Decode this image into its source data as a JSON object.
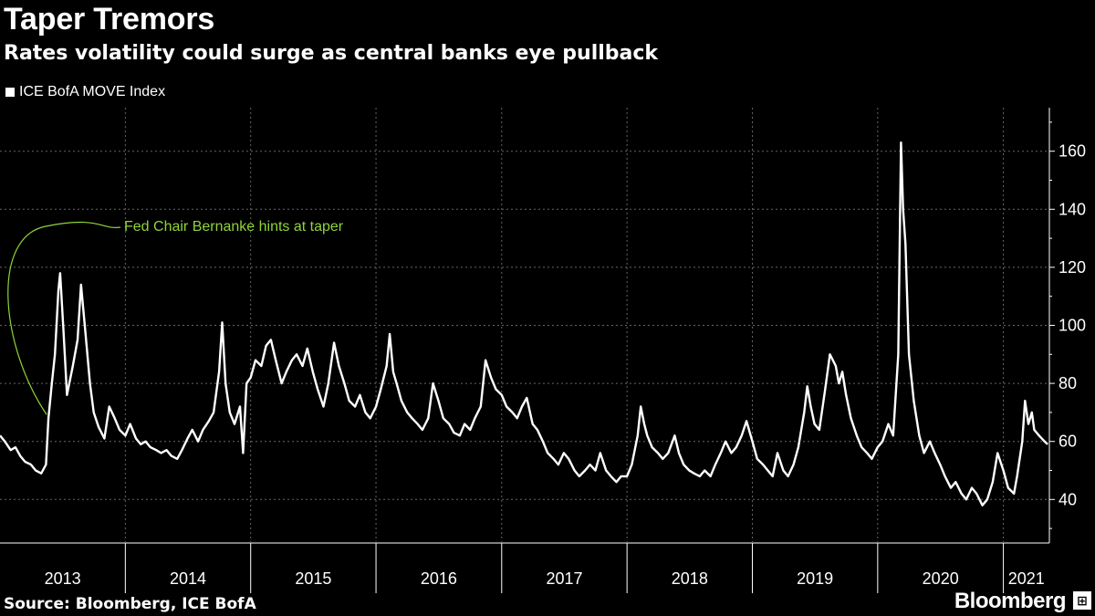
{
  "header": {
    "title": "Taper Tremors",
    "subtitle": "Rates volatility could surge as central banks eye pullback"
  },
  "legend": {
    "label": "ICE BofA MOVE Index"
  },
  "footer": {
    "source": "Source: Bloomberg, ICE BofA",
    "brand": "Bloomberg"
  },
  "colors": {
    "background": "#000000",
    "line": "#ffffff",
    "annotation": "#8fd43a",
    "grid": "#666666"
  },
  "chart_data": {
    "type": "line",
    "title": "Taper Tremors",
    "subtitle": "Rates volatility could surge as central banks eye pullback",
    "xlabel": "",
    "ylabel": "",
    "xlim": [
      "2013-01-01",
      "2021-05-15"
    ],
    "ylim": [
      25,
      175
    ],
    "y_ticks": [
      40,
      60,
      80,
      100,
      120,
      140,
      160
    ],
    "x_tick_labels": [
      "2013",
      "2014",
      "2015",
      "2016",
      "2017",
      "2018",
      "2019",
      "2020",
      "2021"
    ],
    "grid": true,
    "y_axis_side": "right",
    "annotation": {
      "text": "Fed Chair Bernanke hints at taper",
      "date": "2013-05-22"
    },
    "series": [
      {
        "name": "ICE BofA MOVE Index",
        "points": [
          [
            "2013-01-01",
            62
          ],
          [
            "2013-01-15",
            60
          ],
          [
            "2013-02-01",
            57
          ],
          [
            "2013-02-15",
            58
          ],
          [
            "2013-03-01",
            55
          ],
          [
            "2013-03-15",
            53
          ],
          [
            "2013-04-01",
            52
          ],
          [
            "2013-04-15",
            50
          ],
          [
            "2013-05-01",
            49
          ],
          [
            "2013-05-15",
            52
          ],
          [
            "2013-05-22",
            68
          ],
          [
            "2013-06-01",
            80
          ],
          [
            "2013-06-10",
            90
          ],
          [
            "2013-06-20",
            112
          ],
          [
            "2013-06-25",
            118
          ],
          [
            "2013-07-05",
            98
          ],
          [
            "2013-07-15",
            76
          ],
          [
            "2013-08-01",
            86
          ],
          [
            "2013-08-15",
            95
          ],
          [
            "2013-08-25",
            114
          ],
          [
            "2013-09-05",
            100
          ],
          [
            "2013-09-20",
            80
          ],
          [
            "2013-10-01",
            70
          ],
          [
            "2013-10-15",
            65
          ],
          [
            "2013-11-01",
            61
          ],
          [
            "2013-11-15",
            72
          ],
          [
            "2013-12-01",
            68
          ],
          [
            "2013-12-15",
            64
          ],
          [
            "2014-01-01",
            62
          ],
          [
            "2014-01-15",
            66
          ],
          [
            "2014-02-01",
            61
          ],
          [
            "2014-02-15",
            59
          ],
          [
            "2014-03-01",
            60
          ],
          [
            "2014-03-15",
            58
          ],
          [
            "2014-04-01",
            57
          ],
          [
            "2014-04-15",
            56
          ],
          [
            "2014-05-01",
            57
          ],
          [
            "2014-05-15",
            55
          ],
          [
            "2014-06-01",
            54
          ],
          [
            "2014-06-15",
            57
          ],
          [
            "2014-07-01",
            61
          ],
          [
            "2014-07-15",
            64
          ],
          [
            "2014-08-01",
            60
          ],
          [
            "2014-08-15",
            64
          ],
          [
            "2014-09-01",
            67
          ],
          [
            "2014-09-15",
            70
          ],
          [
            "2014-10-01",
            84
          ],
          [
            "2014-10-10",
            101
          ],
          [
            "2014-10-20",
            80
          ],
          [
            "2014-11-01",
            70
          ],
          [
            "2014-11-15",
            66
          ],
          [
            "2014-12-01",
            72
          ],
          [
            "2014-12-10",
            56
          ],
          [
            "2014-12-20",
            80
          ],
          [
            "2015-01-01",
            82
          ],
          [
            "2015-01-15",
            88
          ],
          [
            "2015-02-01",
            86
          ],
          [
            "2015-02-15",
            93
          ],
          [
            "2015-03-01",
            95
          ],
          [
            "2015-03-15",
            88
          ],
          [
            "2015-04-01",
            80
          ],
          [
            "2015-04-15",
            84
          ],
          [
            "2015-05-01",
            88
          ],
          [
            "2015-05-15",
            90
          ],
          [
            "2015-06-01",
            86
          ],
          [
            "2015-06-15",
            92
          ],
          [
            "2015-07-01",
            84
          ],
          [
            "2015-07-15",
            78
          ],
          [
            "2015-08-01",
            72
          ],
          [
            "2015-08-15",
            80
          ],
          [
            "2015-09-01",
            94
          ],
          [
            "2015-09-15",
            86
          ],
          [
            "2015-10-01",
            80
          ],
          [
            "2015-10-15",
            74
          ],
          [
            "2015-11-01",
            72
          ],
          [
            "2015-11-15",
            76
          ],
          [
            "2015-12-01",
            70
          ],
          [
            "2015-12-15",
            68
          ],
          [
            "2016-01-01",
            72
          ],
          [
            "2016-01-15",
            78
          ],
          [
            "2016-02-01",
            86
          ],
          [
            "2016-02-10",
            97
          ],
          [
            "2016-02-20",
            84
          ],
          [
            "2016-03-01",
            80
          ],
          [
            "2016-03-15",
            74
          ],
          [
            "2016-04-01",
            70
          ],
          [
            "2016-04-15",
            68
          ],
          [
            "2016-05-01",
            66
          ],
          [
            "2016-05-15",
            64
          ],
          [
            "2016-06-01",
            68
          ],
          [
            "2016-06-15",
            80
          ],
          [
            "2016-07-01",
            74
          ],
          [
            "2016-07-15",
            68
          ],
          [
            "2016-08-01",
            66
          ],
          [
            "2016-08-15",
            63
          ],
          [
            "2016-09-01",
            62
          ],
          [
            "2016-09-15",
            66
          ],
          [
            "2016-10-01",
            64
          ],
          [
            "2016-10-15",
            68
          ],
          [
            "2016-11-01",
            72
          ],
          [
            "2016-11-15",
            88
          ],
          [
            "2016-12-01",
            82
          ],
          [
            "2016-12-15",
            78
          ],
          [
            "2017-01-01",
            76
          ],
          [
            "2017-01-15",
            72
          ],
          [
            "2017-02-01",
            70
          ],
          [
            "2017-02-15",
            68
          ],
          [
            "2017-03-01",
            72
          ],
          [
            "2017-03-15",
            75
          ],
          [
            "2017-04-01",
            66
          ],
          [
            "2017-04-15",
            64
          ],
          [
            "2017-05-01",
            60
          ],
          [
            "2017-05-15",
            56
          ],
          [
            "2017-06-01",
            54
          ],
          [
            "2017-06-15",
            52
          ],
          [
            "2017-07-01",
            56
          ],
          [
            "2017-07-15",
            54
          ],
          [
            "2017-08-01",
            50
          ],
          [
            "2017-08-15",
            48
          ],
          [
            "2017-09-01",
            50
          ],
          [
            "2017-09-15",
            52
          ],
          [
            "2017-10-01",
            50
          ],
          [
            "2017-10-15",
            56
          ],
          [
            "2017-11-01",
            50
          ],
          [
            "2017-11-15",
            48
          ],
          [
            "2017-12-01",
            46
          ],
          [
            "2017-12-15",
            48
          ],
          [
            "2018-01-01",
            48
          ],
          [
            "2018-01-15",
            52
          ],
          [
            "2018-02-01",
            62
          ],
          [
            "2018-02-10",
            72
          ],
          [
            "2018-02-20",
            66
          ],
          [
            "2018-03-01",
            62
          ],
          [
            "2018-03-15",
            58
          ],
          [
            "2018-04-01",
            56
          ],
          [
            "2018-04-15",
            54
          ],
          [
            "2018-05-01",
            56
          ],
          [
            "2018-05-20",
            62
          ],
          [
            "2018-06-01",
            56
          ],
          [
            "2018-06-15",
            52
          ],
          [
            "2018-07-01",
            50
          ],
          [
            "2018-07-15",
            49
          ],
          [
            "2018-08-01",
            48
          ],
          [
            "2018-08-15",
            50
          ],
          [
            "2018-09-01",
            48
          ],
          [
            "2018-09-15",
            52
          ],
          [
            "2018-10-01",
            56
          ],
          [
            "2018-10-15",
            60
          ],
          [
            "2018-11-01",
            56
          ],
          [
            "2018-11-15",
            58
          ],
          [
            "2018-12-01",
            62
          ],
          [
            "2018-12-15",
            67
          ],
          [
            "2019-01-01",
            60
          ],
          [
            "2019-01-15",
            54
          ],
          [
            "2019-02-01",
            52
          ],
          [
            "2019-02-15",
            50
          ],
          [
            "2019-03-01",
            48
          ],
          [
            "2019-03-15",
            56
          ],
          [
            "2019-04-01",
            50
          ],
          [
            "2019-04-15",
            48
          ],
          [
            "2019-05-01",
            52
          ],
          [
            "2019-05-15",
            58
          ],
          [
            "2019-06-01",
            70
          ],
          [
            "2019-06-10",
            79
          ],
          [
            "2019-06-20",
            72
          ],
          [
            "2019-07-01",
            66
          ],
          [
            "2019-07-15",
            64
          ],
          [
            "2019-08-01",
            78
          ],
          [
            "2019-08-15",
            90
          ],
          [
            "2019-09-01",
            86
          ],
          [
            "2019-09-10",
            80
          ],
          [
            "2019-09-20",
            84
          ],
          [
            "2019-10-01",
            76
          ],
          [
            "2019-10-15",
            68
          ],
          [
            "2019-11-01",
            62
          ],
          [
            "2019-11-15",
            58
          ],
          [
            "2019-12-01",
            56
          ],
          [
            "2019-12-15",
            54
          ],
          [
            "2020-01-01",
            58
          ],
          [
            "2020-01-15",
            60
          ],
          [
            "2020-02-01",
            66
          ],
          [
            "2020-02-15",
            62
          ],
          [
            "2020-03-01",
            90
          ],
          [
            "2020-03-09",
            163
          ],
          [
            "2020-03-15",
            140
          ],
          [
            "2020-03-22",
            128
          ],
          [
            "2020-04-01",
            90
          ],
          [
            "2020-04-15",
            74
          ],
          [
            "2020-05-01",
            62
          ],
          [
            "2020-05-15",
            56
          ],
          [
            "2020-06-01",
            60
          ],
          [
            "2020-06-15",
            56
          ],
          [
            "2020-07-01",
            52
          ],
          [
            "2020-07-15",
            48
          ],
          [
            "2020-08-01",
            44
          ],
          [
            "2020-08-15",
            46
          ],
          [
            "2020-09-01",
            42
          ],
          [
            "2020-09-15",
            40
          ],
          [
            "2020-10-01",
            44
          ],
          [
            "2020-10-15",
            42
          ],
          [
            "2020-11-01",
            38
          ],
          [
            "2020-11-15",
            40
          ],
          [
            "2020-12-01",
            46
          ],
          [
            "2020-12-15",
            56
          ],
          [
            "2021-01-01",
            50
          ],
          [
            "2021-01-15",
            44
          ],
          [
            "2021-02-01",
            42
          ],
          [
            "2021-02-10",
            48
          ],
          [
            "2021-02-25",
            60
          ],
          [
            "2021-03-05",
            74
          ],
          [
            "2021-03-15",
            66
          ],
          [
            "2021-03-25",
            70
          ],
          [
            "2021-04-01",
            64
          ],
          [
            "2021-04-15",
            62
          ],
          [
            "2021-05-01",
            60
          ],
          [
            "2021-05-10",
            59
          ]
        ]
      }
    ]
  }
}
